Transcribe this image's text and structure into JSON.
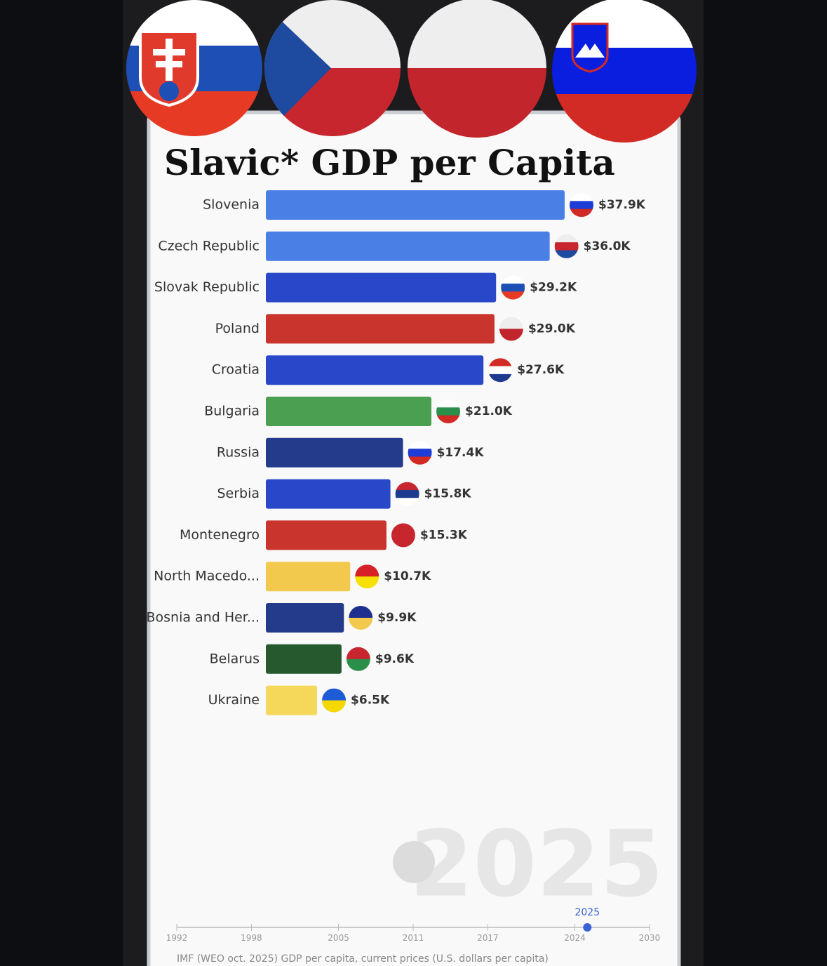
{
  "chart_data": {
    "type": "bar",
    "orientation": "horizontal",
    "title": "Slavic* GDP per Capita",
    "categories": [
      "Slovenia",
      "Czech Republic",
      "Slovak Republic",
      "Poland",
      "Croatia",
      "Bulgaria",
      "Russia",
      "Serbia",
      "Montenegro",
      "North Macedo...",
      "Bosnia and Her...",
      "Belarus",
      "Ukraine"
    ],
    "values": [
      37.9,
      36.0,
      29.2,
      29.0,
      27.6,
      21.0,
      17.4,
      15.8,
      15.3,
      10.7,
      9.9,
      9.6,
      6.5
    ],
    "value_labels": [
      "$37.9K",
      "$36.0K",
      "$29.2K",
      "$29.0K",
      "$27.6K",
      "$21.0K",
      "$17.4K",
      "$15.8K",
      "$15.3K",
      "$10.7K",
      "$9.9K",
      "$9.6K",
      "$6.5K"
    ],
    "colors": [
      "#4a7fe6",
      "#4a7fe6",
      "#2847c9",
      "#c9342c",
      "#2847c9",
      "#4aa050",
      "#243a8a",
      "#2847c9",
      "#c9342c",
      "#f2c94c",
      "#243a8a",
      "#265a2e",
      "#f5d85a"
    ],
    "timeline": {
      "xlim": [
        1992,
        2030
      ],
      "xticks": [
        1992,
        1998,
        2005,
        2011,
        2017,
        2024,
        2030
      ],
      "current": 2025
    },
    "source": "IMF (WEO oct. 2025) GDP per capita, current prices  (U.S. dollars per capita)"
  }
}
